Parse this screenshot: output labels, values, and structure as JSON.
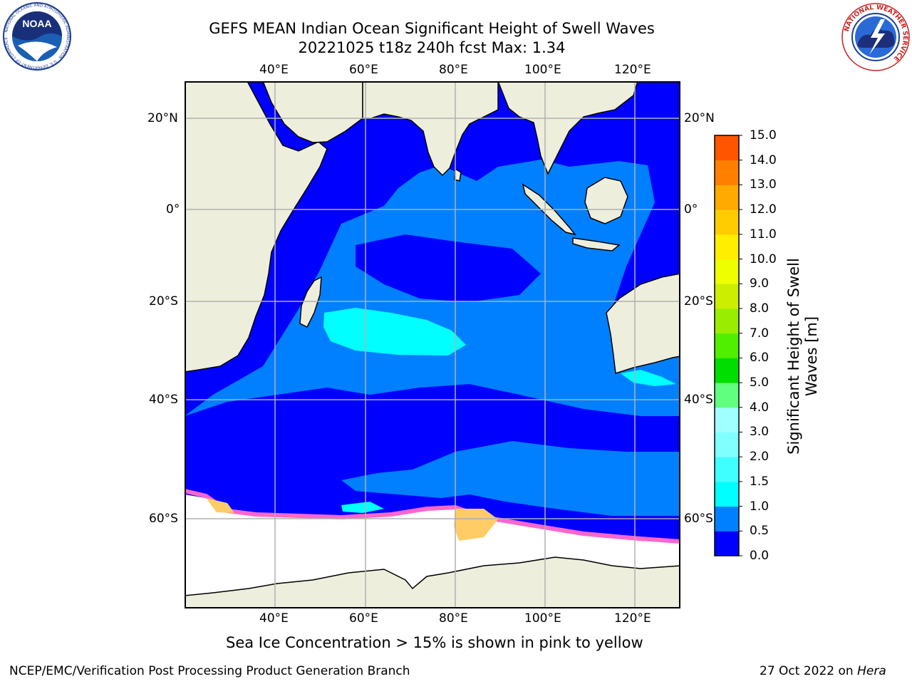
{
  "header": {
    "title_line1": "GEFS MEAN Indian Ocean Significant Height of Swell Waves",
    "title_line2": "20221025 t18z 240h fcst   Max: 1.34"
  },
  "map": {
    "lon_labels_top": [
      "40°E",
      "60°E",
      "80°E",
      "100°E",
      "120°E"
    ],
    "lon_labels_bottom": [
      "40°E",
      "60°E",
      "80°E",
      "100°E",
      "120°E"
    ],
    "lat_labels_left": [
      "20°N",
      "0°",
      "20°S",
      "40°S",
      "60°S"
    ],
    "lat_labels_right": [
      "20°N",
      "0°",
      "20°S",
      "40°S",
      "60°S"
    ],
    "colors": {
      "land": "#eeeedd",
      "ice": "#ffffff",
      "swell_0_0p5": "#0000ff",
      "swell_0p5_1": "#0080ff",
      "swell_1_1p5": "#00ffff",
      "ice_edge_pink": "#ff66cc",
      "ice_edge_yellow": "#ffcc66",
      "grid": "#b0b0b0"
    }
  },
  "colorbar": {
    "ticks": [
      "0.0",
      "0.5",
      "1.0",
      "1.5",
      "2.0",
      "3.0",
      "4.0",
      "5.0",
      "6.0",
      "7.0",
      "8.0",
      "9.0",
      "10.0",
      "11.0",
      "12.0",
      "13.0",
      "14.0",
      "15.0"
    ],
    "colors": [
      "#0000ff",
      "#0080ff",
      "#00ffff",
      "#40ffff",
      "#80ffff",
      "#a0ffff",
      "#60ff80",
      "#00dd00",
      "#50ee00",
      "#99ee00",
      "#ccee00",
      "#eeff00",
      "#ffee00",
      "#ffcc00",
      "#ffaa00",
      "#ff8000",
      "#ff5500",
      "#ff2200",
      "#ff0000"
    ],
    "label": "Significant Height of Swell Waves [m]"
  },
  "footer": {
    "note": "Sea Ice Concentration > 15% is shown in pink to yellow",
    "credit": "NCEP/EMC/Verification Post Processing Product Generation Branch",
    "date": "27 Oct 2022 on",
    "machine": "Hera"
  },
  "logos": {
    "noaa": "NOAA",
    "noaa_ring": "NATIONAL OCEANIC AND ATMOSPHERIC ADMINISTRATION · U.S. DEPARTMENT OF COMMERCE",
    "nws_ring": "NATIONAL WEATHER SERVICE"
  }
}
